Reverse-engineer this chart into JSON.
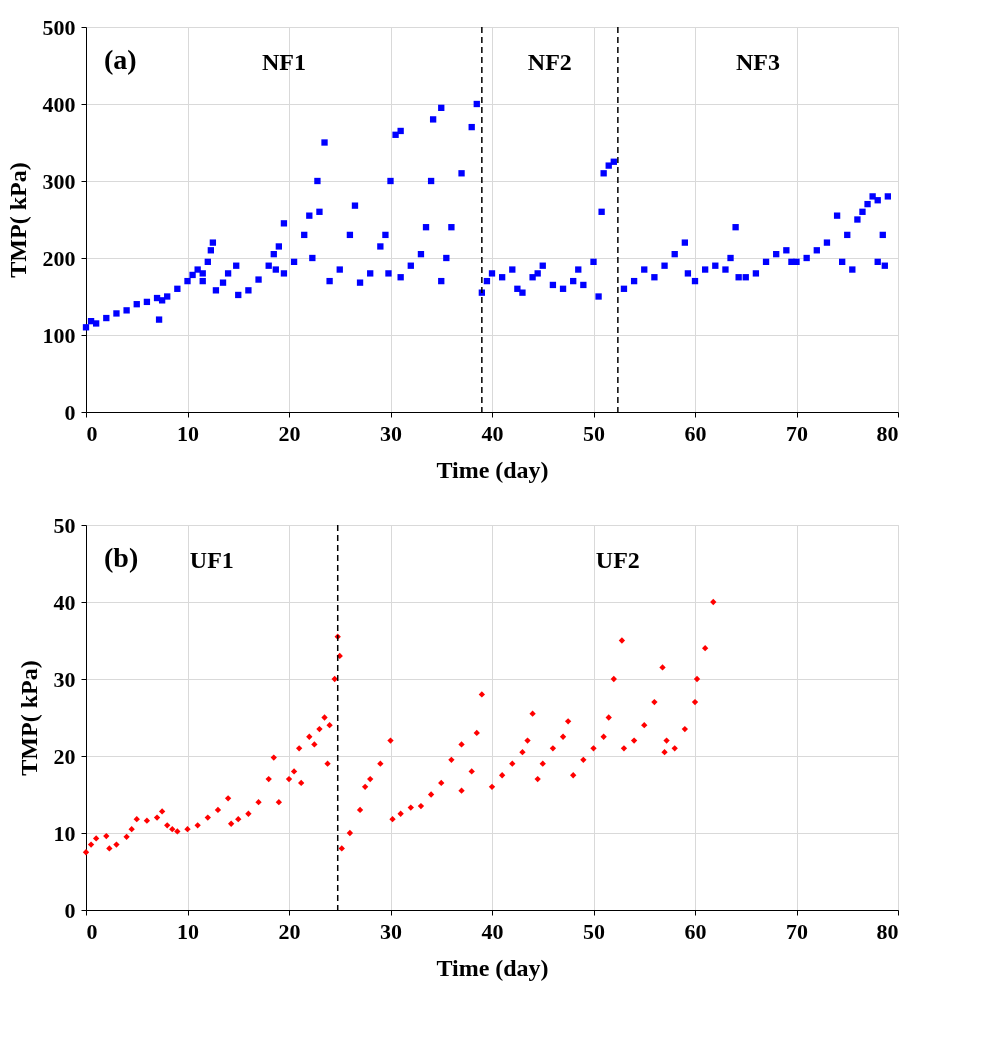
{
  "chart_data": [
    {
      "type": "scatter",
      "xlabel": "Time (day)",
      "ylabel": "TMP( kPa)",
      "xlim": [
        0,
        80
      ],
      "xticks": [
        0,
        10,
        20,
        30,
        40,
        50,
        60,
        70,
        80
      ],
      "ylim": [
        0,
        500
      ],
      "yticks": [
        0,
        100,
        200,
        300,
        400,
        500
      ],
      "grid": true,
      "marker": "square",
      "legend": false,
      "annotations": [
        "(a)",
        "NF1",
        "NF2",
        "NF3"
      ],
      "ref_lines": [
        {
          "axis": "x",
          "value": 39,
          "line_style": "dashed",
          "color": "#000000"
        },
        {
          "axis": "x",
          "value": 52.4,
          "line_style": "dashed",
          "color": "#000000"
        }
      ],
      "series": [
        {
          "color": "#0000ff",
          "x": [
            0,
            0.5,
            1,
            2,
            3,
            4,
            5,
            6,
            7,
            7.2,
            7.5,
            8,
            9,
            10,
            10.5,
            11,
            11.5,
            11.5,
            12,
            12.3,
            12.5,
            12.8,
            13.5,
            14,
            14.8,
            15,
            16,
            17,
            18,
            18.5,
            18.7,
            19,
            19.5,
            19.5,
            20.5,
            21.5,
            22,
            22.3,
            22.8,
            23,
            23.5,
            24,
            25,
            26,
            26.5,
            27,
            28,
            29,
            29.5,
            29.8,
            30,
            30.5,
            31,
            31,
            32,
            33,
            33.5,
            34,
            34.2,
            35,
            35,
            35.5,
            36,
            37,
            38,
            38.5,
            39,
            39.5,
            40,
            41,
            42,
            42.5,
            43,
            44,
            44.5,
            45,
            46,
            47,
            48,
            48.5,
            49,
            50,
            50.5,
            50.8,
            51,
            51.5,
            52,
            53,
            54,
            55,
            56,
            57,
            58,
            59,
            59.3,
            60,
            61,
            62,
            63,
            63.5,
            64,
            64.3,
            65,
            66,
            67,
            68,
            69,
            69.5,
            70,
            71,
            72,
            73,
            74,
            74.5,
            75,
            75.5,
            76,
            76.5,
            77,
            77.5,
            78,
            78,
            78.5,
            78.7,
            79
          ],
          "values": [
            110,
            118,
            115,
            122,
            128,
            132,
            140,
            143,
            148,
            120,
            145,
            150,
            160,
            170,
            178,
            185,
            170,
            180,
            195,
            210,
            220,
            158,
            168,
            180,
            190,
            152,
            158,
            172,
            190,
            205,
            185,
            215,
            245,
            180,
            195,
            230,
            255,
            200,
            300,
            260,
            350,
            170,
            185,
            230,
            268,
            168,
            180,
            215,
            230,
            180,
            300,
            360,
            365,
            175,
            190,
            205,
            240,
            300,
            380,
            395,
            170,
            200,
            240,
            310,
            370,
            400,
            155,
            170,
            180,
            175,
            185,
            160,
            155,
            175,
            180,
            190,
            165,
            160,
            170,
            185,
            165,
            195,
            150,
            260,
            310,
            320,
            325,
            160,
            170,
            185,
            175,
            190,
            205,
            220,
            180,
            170,
            185,
            190,
            185,
            200,
            240,
            175,
            175,
            180,
            195,
            205,
            210,
            195,
            195,
            200,
            210,
            220,
            255,
            195,
            230,
            185,
            250,
            260,
            270,
            280,
            275,
            195,
            230,
            190,
            280
          ]
        }
      ]
    },
    {
      "type": "scatter",
      "xlabel": "Time (day)",
      "ylabel": "TMP( kPa)",
      "xlim": [
        0,
        80
      ],
      "xticks": [
        0,
        10,
        20,
        30,
        40,
        50,
        60,
        70,
        80
      ],
      "ylim": [
        0,
        50
      ],
      "yticks": [
        0,
        10,
        20,
        30,
        40,
        50
      ],
      "grid": true,
      "marker": "diamond",
      "legend": false,
      "annotations": [
        "(b)",
        "UF1",
        "UF2"
      ],
      "ref_lines": [
        {
          "axis": "x",
          "value": 24.8,
          "line_style": "dashed",
          "color": "#000000"
        }
      ],
      "series": [
        {
          "color": "#ff0000",
          "x": [
            0,
            0.5,
            1,
            2,
            2.3,
            3,
            4,
            4.5,
            5,
            6,
            7,
            7.5,
            8,
            8.5,
            9,
            10,
            11,
            12,
            13,
            14,
            14.3,
            15,
            16,
            17,
            18,
            18.5,
            19,
            20,
            20.5,
            21,
            21.2,
            22,
            22.5,
            23,
            23.5,
            23.8,
            24,
            24.5,
            24.8,
            25,
            25.2,
            26,
            27,
            27.5,
            28,
            29,
            30,
            30.2,
            31,
            32,
            33,
            34,
            35,
            36,
            37,
            37,
            38,
            38.5,
            39,
            40,
            41,
            42,
            43,
            43.5,
            44,
            44.5,
            45,
            46,
            47,
            47.5,
            48,
            49,
            50,
            51,
            51.5,
            52,
            52.8,
            53,
            54,
            55,
            56,
            56.8,
            57,
            57.2,
            58,
            59,
            60,
            60.2,
            61,
            61.8
          ],
          "values": [
            7.5,
            8.5,
            9.3,
            9.6,
            8,
            8.5,
            9.5,
            10.5,
            11.8,
            11.6,
            12,
            12.8,
            11,
            10.5,
            10.2,
            10.5,
            11,
            12,
            13,
            14.5,
            11.2,
            11.8,
            12.5,
            14,
            17,
            19.8,
            14,
            17,
            18,
            21,
            16.5,
            22.5,
            21.5,
            23.5,
            25,
            19,
            24,
            30,
            35.5,
            33,
            8,
            10,
            13,
            16,
            17,
            19,
            22,
            11.8,
            12.5,
            13.3,
            13.5,
            15,
            16.5,
            19.5,
            21.5,
            15.5,
            18,
            23,
            28,
            16,
            17.5,
            19,
            20.5,
            22,
            25.5,
            17,
            19,
            21,
            22.5,
            24.5,
            17.5,
            19.5,
            21,
            22.5,
            25,
            30,
            35,
            21,
            22,
            24,
            27,
            31.5,
            20.5,
            22,
            21,
            23.5,
            27,
            30,
            34,
            40
          ]
        }
      ]
    }
  ]
}
